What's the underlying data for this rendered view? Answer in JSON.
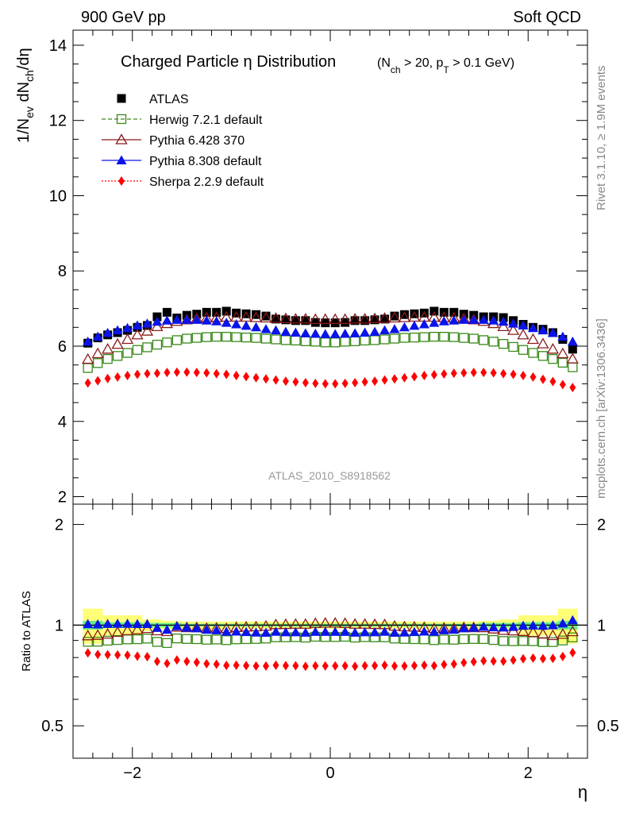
{
  "header": {
    "left": "900 GeV pp",
    "right": "Soft QCD"
  },
  "side": {
    "rivet": "Rivet 3.1.10, ≥ 1.9M events",
    "source": "mcplots.cern.ch [arXiv:1306.3436]"
  },
  "watermark": "ATLAS_2010_S8918562",
  "chart_data": [
    {
      "type": "scatter",
      "title": "Charged Particle η Distribution",
      "subtitle": "(N_ch > 20, p_T > 0.1 GeV)",
      "ylabel": "1/N_ev dN_ch/dη",
      "xlim": [
        -2.6,
        2.6
      ],
      "ylim": [
        1.8,
        14.4
      ],
      "y_ticks": [
        2,
        4,
        6,
        8,
        10,
        12,
        14
      ],
      "x_ticks": [
        -2,
        0,
        2
      ],
      "legend_position": "top-left",
      "x": [
        -2.45,
        -2.35,
        -2.25,
        -2.15,
        -2.05,
        -1.95,
        -1.85,
        -1.75,
        -1.65,
        -1.55,
        -1.45,
        -1.35,
        -1.25,
        -1.15,
        -1.05,
        -0.95,
        -0.85,
        -0.75,
        -0.65,
        -0.55,
        -0.45,
        -0.35,
        -0.25,
        -0.15,
        -0.05,
        0.05,
        0.15,
        0.25,
        0.35,
        0.45,
        0.55,
        0.65,
        0.75,
        0.85,
        0.95,
        1.05,
        1.15,
        1.25,
        1.35,
        1.45,
        1.55,
        1.65,
        1.75,
        1.85,
        1.95,
        2.05,
        2.15,
        2.25,
        2.35,
        2.45
      ],
      "series": [
        {
          "name": "ATLAS",
          "color": "#000000",
          "marker": "square-filled",
          "values": [
            6.08,
            6.22,
            6.3,
            6.36,
            6.42,
            6.5,
            6.55,
            6.78,
            6.9,
            6.75,
            6.82,
            6.85,
            6.9,
            6.9,
            6.93,
            6.88,
            6.86,
            6.84,
            6.8,
            6.72,
            6.7,
            6.68,
            6.68,
            6.63,
            6.62,
            6.62,
            6.63,
            6.68,
            6.68,
            6.7,
            6.72,
            6.8,
            6.84,
            6.86,
            6.88,
            6.93,
            6.9,
            6.9,
            6.85,
            6.82,
            6.78,
            6.78,
            6.76,
            6.68,
            6.58,
            6.5,
            6.45,
            6.36,
            6.18,
            5.92
          ]
        },
        {
          "name": "Herwig 7.2.1 default",
          "color": "#3a8a1a",
          "marker": "square-open",
          "values": [
            5.42,
            5.55,
            5.66,
            5.74,
            5.82,
            5.9,
            5.97,
            6.04,
            6.1,
            6.16,
            6.2,
            6.22,
            6.24,
            6.25,
            6.25,
            6.24,
            6.23,
            6.22,
            6.2,
            6.18,
            6.16,
            6.15,
            6.13,
            6.12,
            6.1,
            6.1,
            6.12,
            6.13,
            6.15,
            6.16,
            6.18,
            6.2,
            6.22,
            6.23,
            6.24,
            6.25,
            6.25,
            6.24,
            6.22,
            6.2,
            6.16,
            6.12,
            6.06,
            5.98,
            5.9,
            5.82,
            5.74,
            5.66,
            5.56,
            5.44
          ]
        },
        {
          "name": "Pythia 6.428 370",
          "color": "#8b1a1a",
          "marker": "triangle-open",
          "values": [
            5.65,
            5.8,
            5.92,
            6.05,
            6.18,
            6.3,
            6.4,
            6.52,
            6.6,
            6.66,
            6.7,
            6.73,
            6.75,
            6.76,
            6.77,
            6.77,
            6.77,
            6.76,
            6.75,
            6.74,
            6.73,
            6.72,
            6.72,
            6.71,
            6.71,
            6.71,
            6.71,
            6.72,
            6.72,
            6.73,
            6.74,
            6.75,
            6.76,
            6.77,
            6.77,
            6.77,
            6.76,
            6.75,
            6.73,
            6.7,
            6.66,
            6.6,
            6.52,
            6.42,
            6.3,
            6.18,
            6.06,
            5.92,
            5.8,
            5.66
          ]
        },
        {
          "name": "Pythia 8.308 default",
          "color": "#0a14e8",
          "marker": "triangle-filled",
          "values": [
            6.12,
            6.25,
            6.35,
            6.42,
            6.48,
            6.55,
            6.6,
            6.65,
            6.68,
            6.7,
            6.7,
            6.7,
            6.68,
            6.66,
            6.62,
            6.58,
            6.54,
            6.5,
            6.45,
            6.42,
            6.38,
            6.36,
            6.34,
            6.33,
            6.32,
            6.32,
            6.33,
            6.34,
            6.36,
            6.38,
            6.42,
            6.45,
            6.5,
            6.54,
            6.58,
            6.62,
            6.66,
            6.68,
            6.7,
            6.7,
            6.7,
            6.68,
            6.65,
            6.6,
            6.55,
            6.48,
            6.42,
            6.35,
            6.25,
            6.12
          ]
        },
        {
          "name": "Sherpa 2.2.9 default",
          "color": "#ff0000",
          "marker": "diamond-filled",
          "values": [
            5.02,
            5.08,
            5.14,
            5.18,
            5.22,
            5.25,
            5.27,
            5.28,
            5.3,
            5.31,
            5.31,
            5.3,
            5.29,
            5.27,
            5.25,
            5.22,
            5.19,
            5.16,
            5.13,
            5.1,
            5.07,
            5.05,
            5.03,
            5.01,
            5.0,
            5.0,
            5.01,
            5.03,
            5.05,
            5.07,
            5.1,
            5.13,
            5.16,
            5.19,
            5.22,
            5.24,
            5.26,
            5.28,
            5.29,
            5.3,
            5.3,
            5.29,
            5.27,
            5.25,
            5.22,
            5.18,
            5.12,
            5.06,
            4.98,
            4.9
          ]
        }
      ]
    },
    {
      "type": "scatter",
      "ylabel": "Ratio to ATLAS",
      "xlabel": "η",
      "xlim": [
        -2.6,
        2.6
      ],
      "ylim": [
        0.4,
        2.3
      ],
      "y_ticks": [
        0.5,
        1,
        2
      ],
      "x_ticks": [
        -2,
        0,
        2
      ],
      "reference_line": 1,
      "bands": [
        {
          "name": "stat",
          "color": "#66ee88"
        },
        {
          "name": "total",
          "color": "#ffff77"
        }
      ],
      "band_bins": [
        {
          "x_range": [
            -2.5,
            -2.3
          ],
          "total": [
            0.88,
            1.12
          ],
          "stat": [
            0.97,
            1.03
          ]
        },
        {
          "x_range": [
            -2.3,
            -2.1
          ],
          "total": [
            0.93,
            1.07
          ],
          "stat": [
            0.98,
            1.02
          ]
        },
        {
          "x_range": [
            -2.1,
            -1.9
          ],
          "total": [
            0.93,
            1.07
          ],
          "stat": [
            0.98,
            1.02
          ]
        },
        {
          "x_range": [
            -1.9,
            -1.7
          ],
          "total": [
            0.96,
            1.04
          ],
          "stat": [
            0.985,
            1.015
          ]
        },
        {
          "x_range": [
            -1.7,
            -1.5
          ],
          "total": [
            0.97,
            1.03
          ],
          "stat": [
            0.985,
            1.015
          ]
        },
        {
          "x_range": [
            -1.5,
            1.5
          ],
          "total": [
            0.975,
            1.025
          ],
          "stat": [
            0.99,
            1.01
          ]
        },
        {
          "x_range": [
            1.5,
            1.7
          ],
          "total": [
            0.97,
            1.03
          ],
          "stat": [
            0.985,
            1.015
          ]
        },
        {
          "x_range": [
            1.7,
            1.9
          ],
          "total": [
            0.96,
            1.04
          ],
          "stat": [
            0.985,
            1.015
          ]
        },
        {
          "x_range": [
            1.9,
            2.1
          ],
          "total": [
            0.93,
            1.07
          ],
          "stat": [
            0.98,
            1.02
          ]
        },
        {
          "x_range": [
            2.1,
            2.3
          ],
          "total": [
            0.93,
            1.07
          ],
          "stat": [
            0.98,
            1.02
          ]
        },
        {
          "x_range": [
            2.3,
            2.5
          ],
          "total": [
            0.88,
            1.12
          ],
          "stat": [
            0.97,
            1.03
          ]
        }
      ]
    }
  ]
}
